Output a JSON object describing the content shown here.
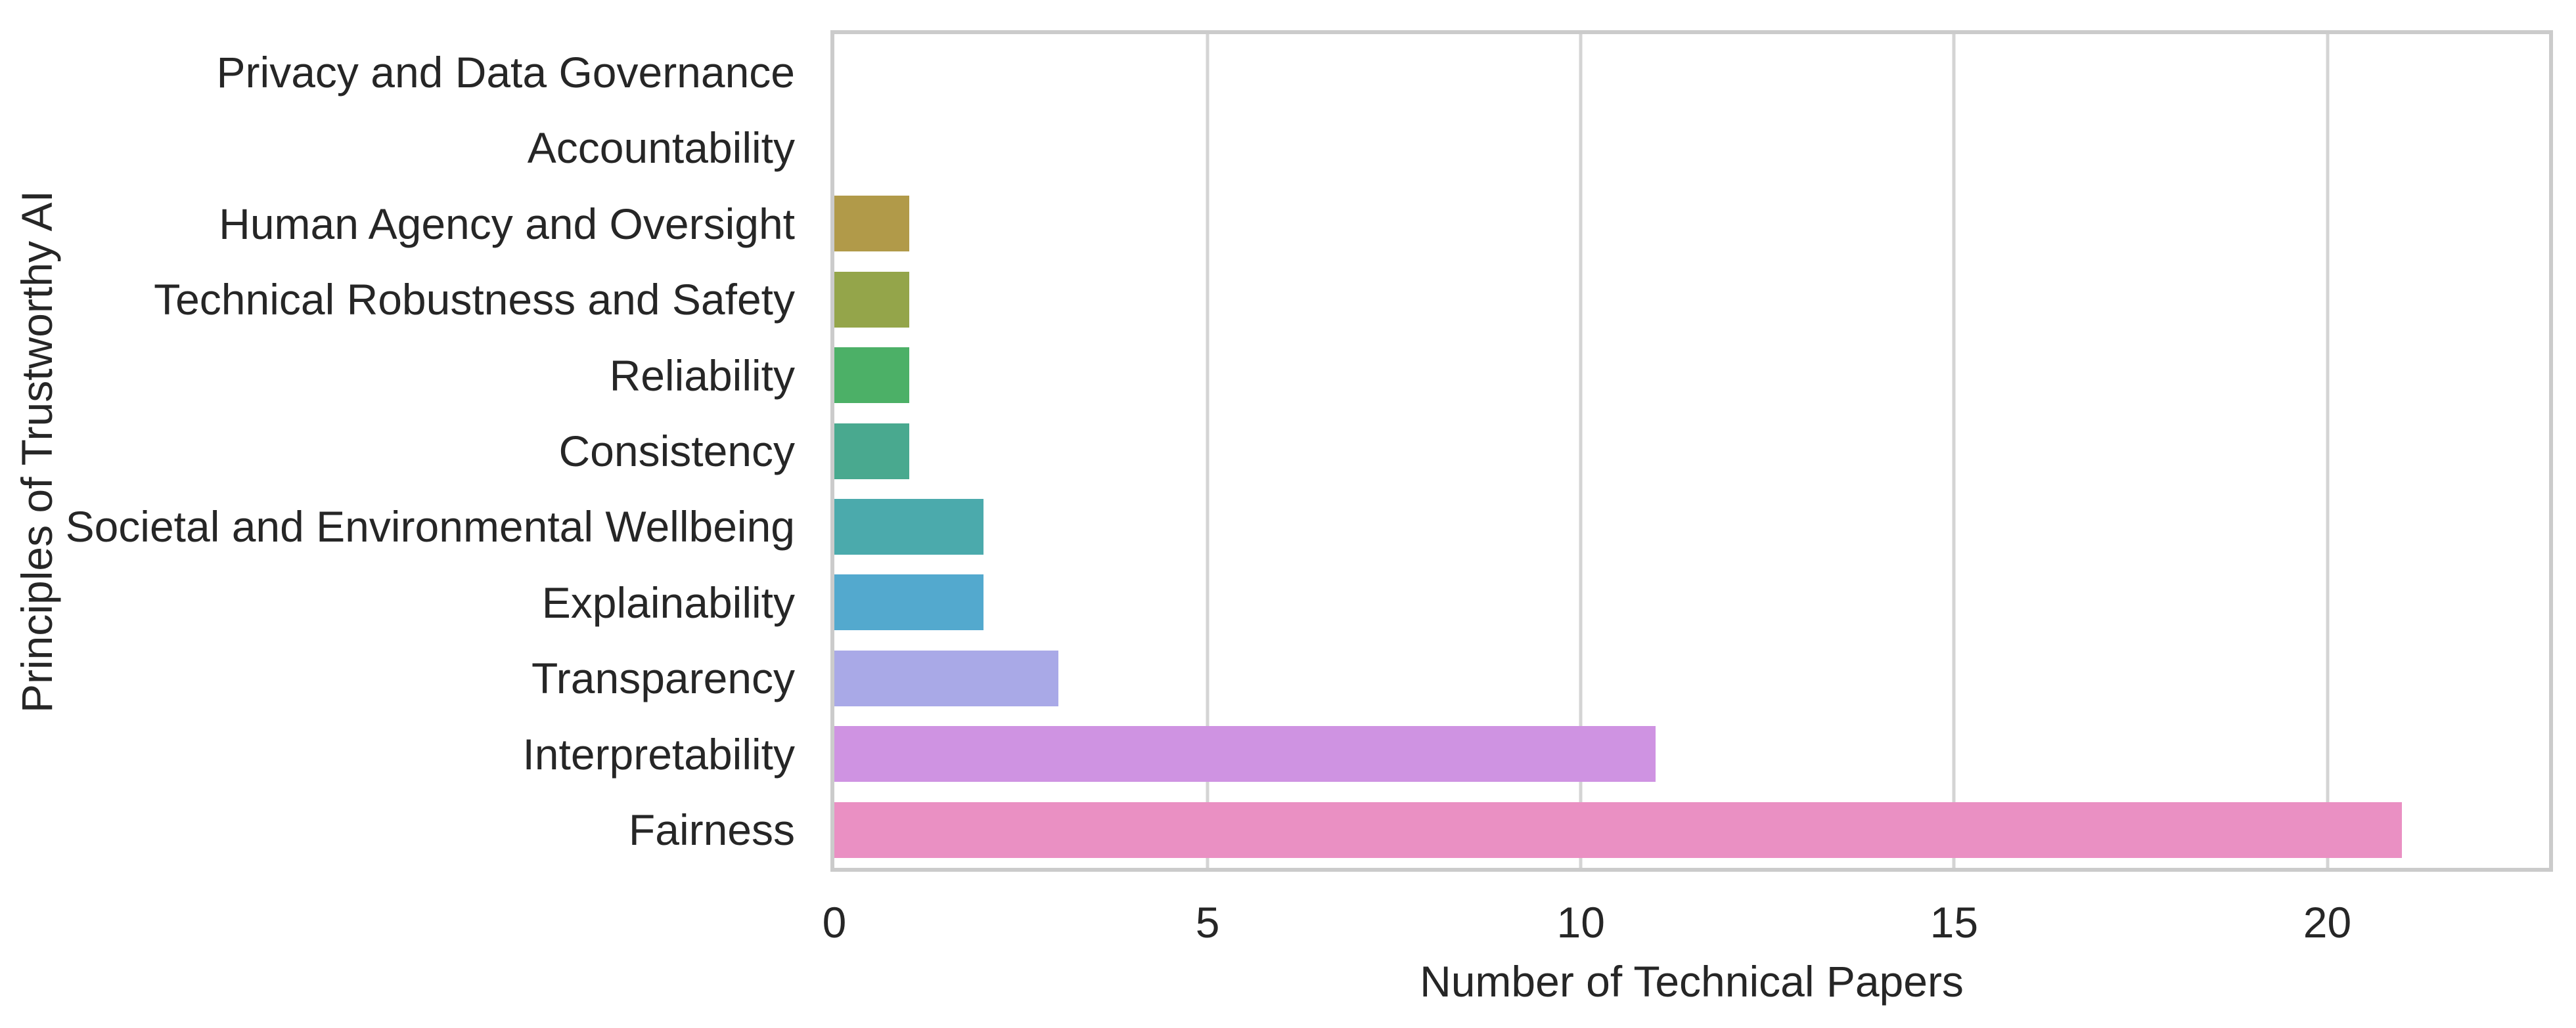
{
  "chart_data": {
    "type": "bar",
    "orientation": "horizontal",
    "title": "",
    "xlabel": "Number of Technical Papers",
    "ylabel": "Principles of Trustworthy AI",
    "categories": [
      "Privacy and Data Governance",
      "Accountability",
      "Human Agency and Oversight",
      "Technical Robustness and Safety",
      "Reliability",
      "Consistency",
      "Societal and Environmental Wellbeing",
      "Explainability",
      "Transparency",
      "Interpretability",
      "Fairness"
    ],
    "values": [
      0,
      0,
      1,
      1,
      1,
      1,
      2,
      2,
      3,
      11,
      21
    ],
    "bar_colors": [
      null,
      null,
      "#b19a49",
      "#94a54a",
      "#4cb067",
      "#49a98f",
      "#4baaac",
      "#53a9ce",
      "#a9a9e7",
      "#cf93e2",
      "#ea90c3"
    ],
    "xticks": [
      "0",
      "5",
      "10",
      "15",
      "20"
    ],
    "xtick_values": [
      0,
      5,
      10,
      15,
      20
    ],
    "xlim": [
      0,
      22.97
    ],
    "grid": "vertical",
    "legend": "none",
    "colors": {
      "background": "#ffffff",
      "gridline": "#d4d4d4",
      "spine": "#cbcbcb",
      "text": "#262626"
    }
  }
}
